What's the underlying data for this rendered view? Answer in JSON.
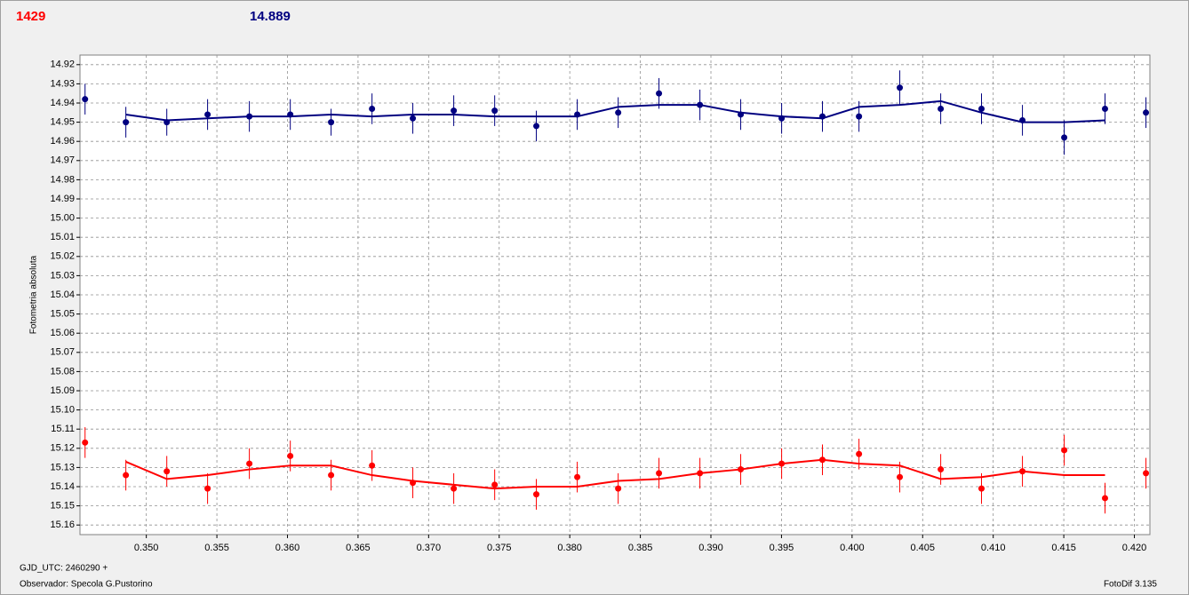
{
  "header": {
    "left_value": "1429",
    "right_value": "14.889"
  },
  "footer": {
    "epoch": "GJD_UTC: 2460290 +",
    "observer": "Observador: Specola G.Pustorino",
    "software": "FotoDif 3.135"
  },
  "chart_data": {
    "type": "scatter",
    "y_label": "Fotometria absoluta",
    "xlim": [
      0.3453,
      0.4211
    ],
    "xticks": [
      {
        "value": 0.35,
        "label": "0.350"
      },
      {
        "value": 0.355,
        "label": "0.355"
      },
      {
        "value": 0.36,
        "label": "0.360"
      },
      {
        "value": 0.365,
        "label": "0.365"
      },
      {
        "value": 0.37,
        "label": "0.370"
      },
      {
        "value": 0.375,
        "label": "0.375"
      },
      {
        "value": 0.38,
        "label": "0.380"
      },
      {
        "value": 0.385,
        "label": "0.385"
      },
      {
        "value": 0.39,
        "label": "0.390"
      },
      {
        "value": 0.395,
        "label": "0.395"
      },
      {
        "value": 0.4,
        "label": "0.400"
      },
      {
        "value": 0.405,
        "label": "0.405"
      },
      {
        "value": 0.41,
        "label": "0.410"
      },
      {
        "value": 0.415,
        "label": "0.415"
      },
      {
        "value": 0.42,
        "label": "0.420"
      }
    ],
    "ylim": [
      14.915,
      15.165
    ],
    "y_inverted": true,
    "yticks": [
      14.92,
      14.93,
      14.94,
      14.95,
      14.96,
      14.97,
      14.98,
      14.99,
      {
        "value": 15.0,
        "label": "15.00"
      },
      15.01,
      15.02,
      15.03,
      15.04,
      15.05,
      15.06,
      15.07,
      15.08,
      15.09,
      {
        "value": 15.1,
        "label": "15.10"
      },
      15.11,
      15.12,
      15.13,
      15.14,
      15.15,
      15.16
    ],
    "grid": true,
    "x": [
      0.34566,
      0.34855,
      0.35145,
      0.35434,
      0.3573,
      0.3602,
      0.36309,
      0.36599,
      0.36888,
      0.37178,
      0.37468,
      0.37763,
      0.38053,
      0.38343,
      0.38632,
      0.38922,
      0.39211,
      0.39501,
      0.3979,
      0.40049,
      0.40338,
      0.40628,
      0.40917,
      0.41207,
      0.41503,
      0.41792,
      0.42082
    ],
    "series": [
      {
        "color": "#000080",
        "values": [
          14.938,
          14.95,
          14.95,
          14.946,
          14.947,
          14.946,
          14.95,
          14.943,
          14.948,
          14.944,
          14.944,
          14.952,
          14.946,
          14.945,
          14.935,
          14.941,
          14.946,
          14.948,
          14.947,
          14.947,
          14.932,
          14.943,
          14.943,
          14.949,
          14.958,
          14.943,
          14.945
        ],
        "errors": [
          0.008,
          0.008,
          0.007,
          0.008,
          0.008,
          0.008,
          0.007,
          0.008,
          0.008,
          0.008,
          0.008,
          0.008,
          0.008,
          0.008,
          0.008,
          0.008,
          0.008,
          0.008,
          0.008,
          0.008,
          0.009,
          0.008,
          0.008,
          0.008,
          0.009,
          0.008,
          0.008
        ],
        "trend_values": [
          null,
          14.946,
          14.949,
          14.948,
          14.947,
          14.947,
          14.946,
          14.947,
          14.946,
          14.946,
          14.947,
          14.947,
          14.947,
          14.942,
          14.941,
          14.941,
          14.945,
          14.947,
          14.948,
          14.942,
          14.941,
          14.939,
          14.945,
          14.95,
          14.95,
          14.949,
          null
        ]
      },
      {
        "color": "#ff0000",
        "values": [
          15.117,
          15.134,
          15.132,
          15.141,
          15.128,
          15.124,
          15.134,
          15.129,
          15.138,
          15.141,
          15.139,
          15.144,
          15.135,
          15.141,
          15.133,
          15.133,
          15.131,
          15.128,
          15.126,
          15.123,
          15.135,
          15.131,
          15.141,
          15.132,
          15.121,
          15.146,
          15.133
        ],
        "errors": [
          0.008,
          0.008,
          0.008,
          0.008,
          0.008,
          0.008,
          0.008,
          0.008,
          0.008,
          0.008,
          0.008,
          0.008,
          0.008,
          0.008,
          0.008,
          0.008,
          0.008,
          0.008,
          0.008,
          0.008,
          0.008,
          0.008,
          0.008,
          0.008,
          0.008,
          0.008,
          0.008
        ],
        "trend_values": [
          null,
          15.127,
          15.136,
          15.134,
          15.131,
          15.129,
          15.129,
          15.134,
          15.137,
          15.139,
          15.141,
          15.14,
          15.14,
          15.137,
          15.136,
          15.133,
          15.131,
          15.128,
          15.126,
          15.128,
          15.129,
          15.136,
          15.135,
          15.132,
          15.134,
          15.134,
          null
        ]
      }
    ]
  }
}
